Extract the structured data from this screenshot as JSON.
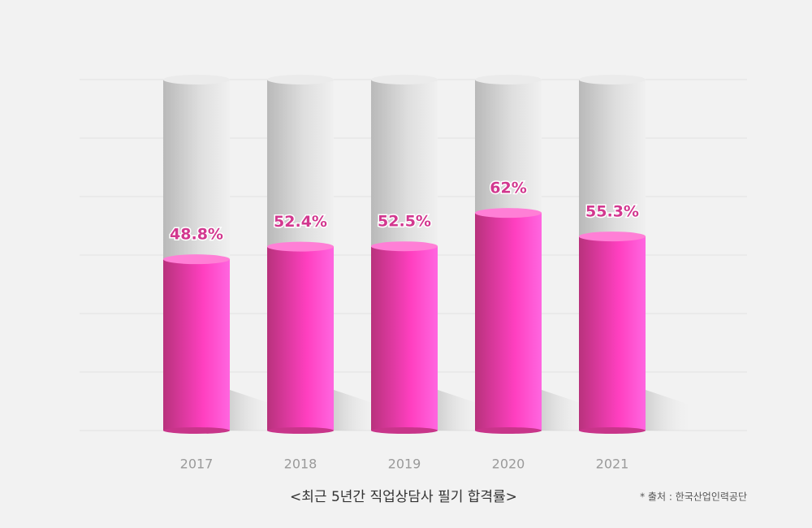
{
  "chart_data": {
    "type": "bar",
    "title": "<최근 5년간 직업상담사 필기 합격률>",
    "source": "* 출처 : 한국산업인력공단",
    "categories": [
      "2017",
      "2018",
      "2019",
      "2020",
      "2021"
    ],
    "values": [
      48.8,
      52.4,
      52.5,
      62,
      55.3
    ],
    "value_labels": [
      "48.8%",
      "52.4%",
      "52.5%",
      "62%",
      "55.3%"
    ],
    "color": "#ff3fc0",
    "ylim": [
      0,
      100
    ]
  }
}
